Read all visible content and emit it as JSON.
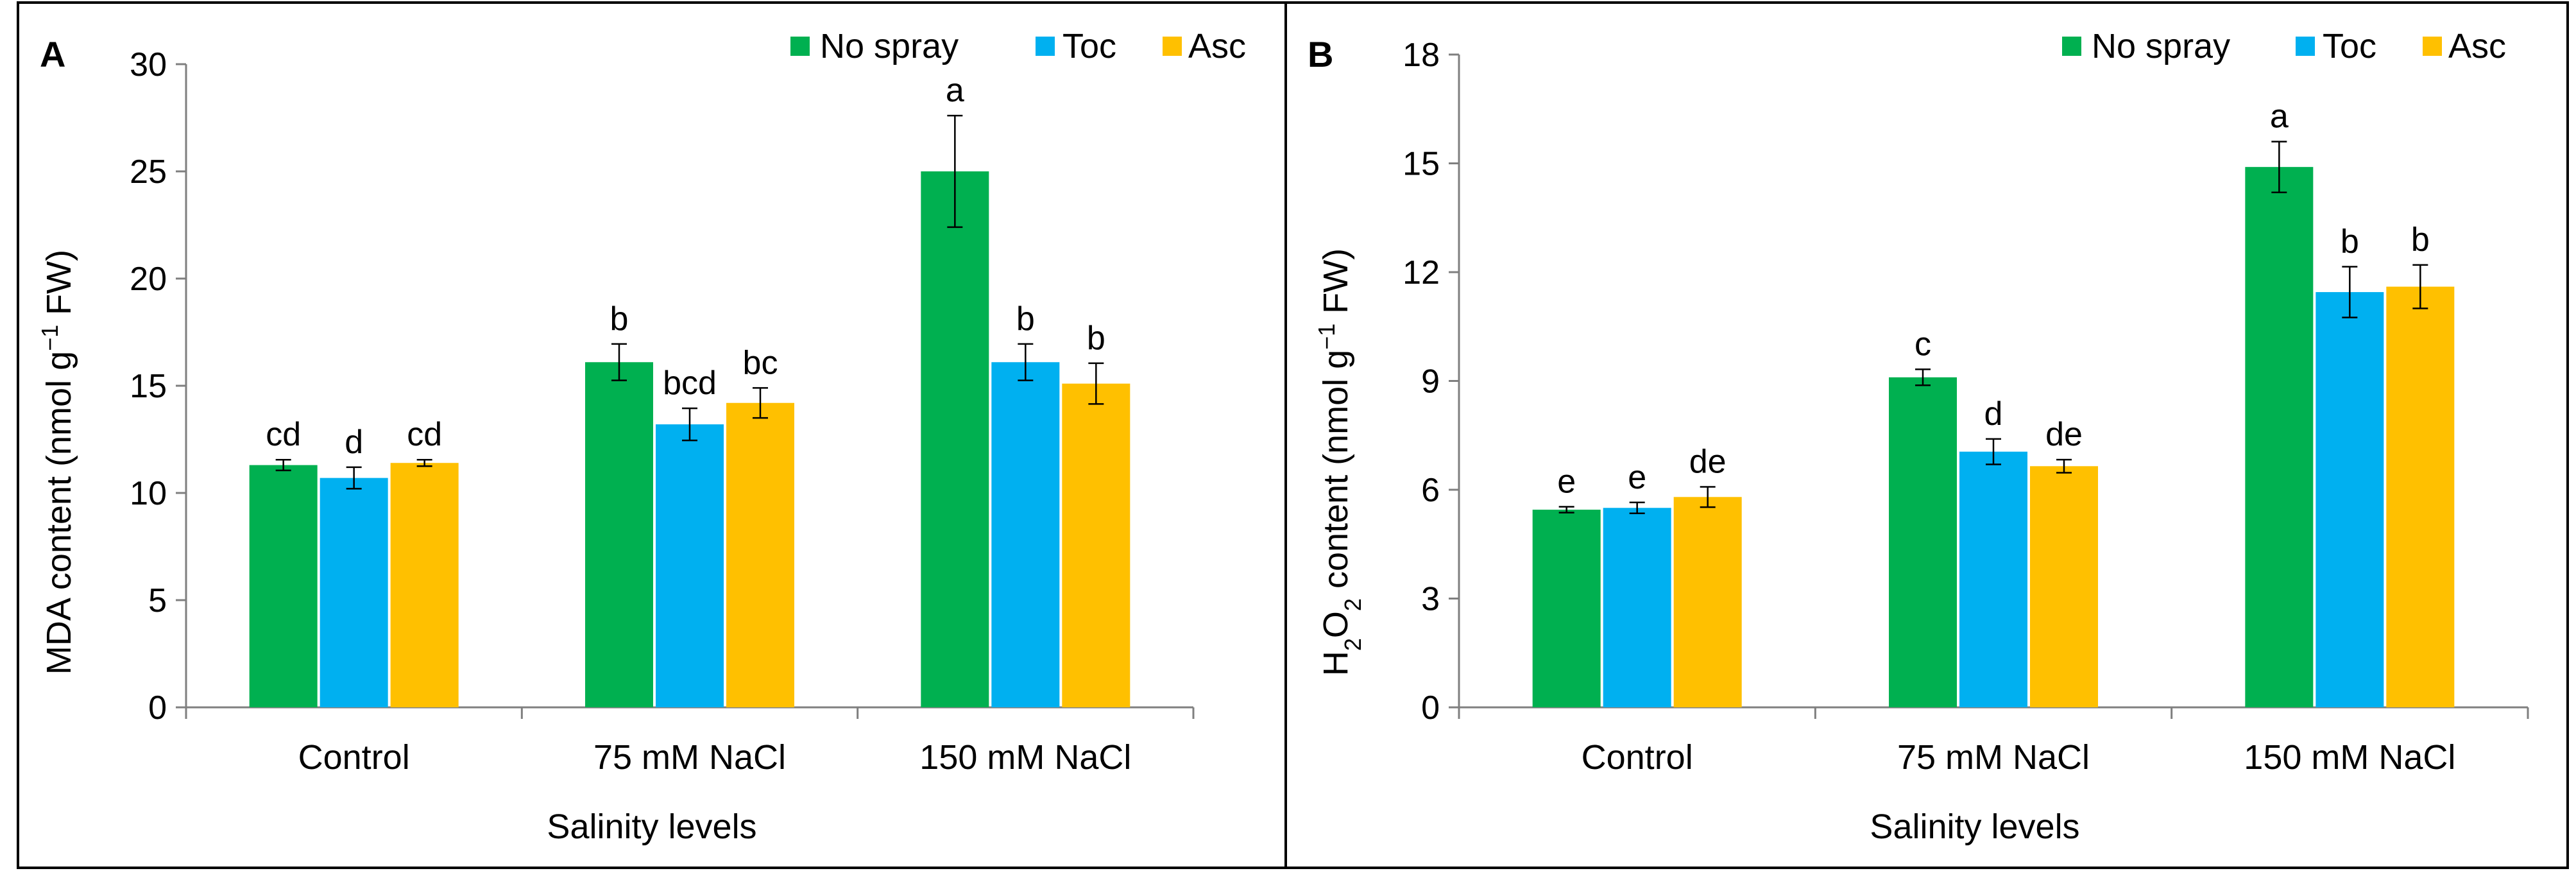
{
  "colors": {
    "no_spray": "#00b050",
    "toc": "#00b0f0",
    "asc": "#ffc000",
    "axis": "#7f7f7f",
    "frame": "#000000"
  },
  "legend": [
    "No spray",
    "Toc",
    "Asc"
  ],
  "chart_data": [
    {
      "type": "bar",
      "panel": "A",
      "title": "",
      "xlabel": "Salinity levels",
      "ylabel": "MDA content (nmol g⁻¹ FW)",
      "ylim": [
        0,
        30
      ],
      "yticks": [
        0,
        5,
        10,
        15,
        20,
        25,
        30
      ],
      "categories": [
        "Control",
        "75 mM NaCl",
        "150 mM NaCl"
      ],
      "series": [
        {
          "name": "No spray",
          "values": [
            11.3,
            16.1,
            25.0
          ],
          "errors": [
            0.25,
            0.85,
            2.6
          ],
          "letters": [
            "cd",
            "b",
            "a"
          ]
        },
        {
          "name": "Toc",
          "values": [
            10.7,
            13.2,
            16.1
          ],
          "errors": [
            0.5,
            0.75,
            0.85
          ],
          "letters": [
            "d",
            "bcd",
            "b"
          ]
        },
        {
          "name": "Asc",
          "values": [
            11.4,
            14.2,
            15.1
          ],
          "errors": [
            0.15,
            0.7,
            0.95
          ],
          "letters": [
            "cd",
            "bc",
            "b"
          ]
        }
      ]
    },
    {
      "type": "bar",
      "panel": "B",
      "title": "",
      "xlabel": "Salinity levels",
      "ylabel": "H2O2 content (nmol g⁻¹ FW)",
      "ylim": [
        0,
        18
      ],
      "yticks": [
        0,
        3,
        6,
        9,
        12,
        15,
        18
      ],
      "categories": [
        "Control",
        "75 mM NaCl",
        "150 mM NaCl"
      ],
      "series": [
        {
          "name": "No spray",
          "values": [
            5.45,
            9.1,
            14.9
          ],
          "errors": [
            0.08,
            0.22,
            0.7
          ],
          "letters": [
            "e",
            "c",
            "a"
          ]
        },
        {
          "name": "Toc",
          "values": [
            5.5,
            7.05,
            11.45
          ],
          "errors": [
            0.15,
            0.35,
            0.7
          ],
          "letters": [
            "e",
            "d",
            "b"
          ]
        },
        {
          "name": "Asc",
          "values": [
            5.8,
            6.65,
            11.6
          ],
          "errors": [
            0.28,
            0.18,
            0.6
          ],
          "letters": [
            "de",
            "de",
            "b"
          ]
        }
      ]
    }
  ]
}
